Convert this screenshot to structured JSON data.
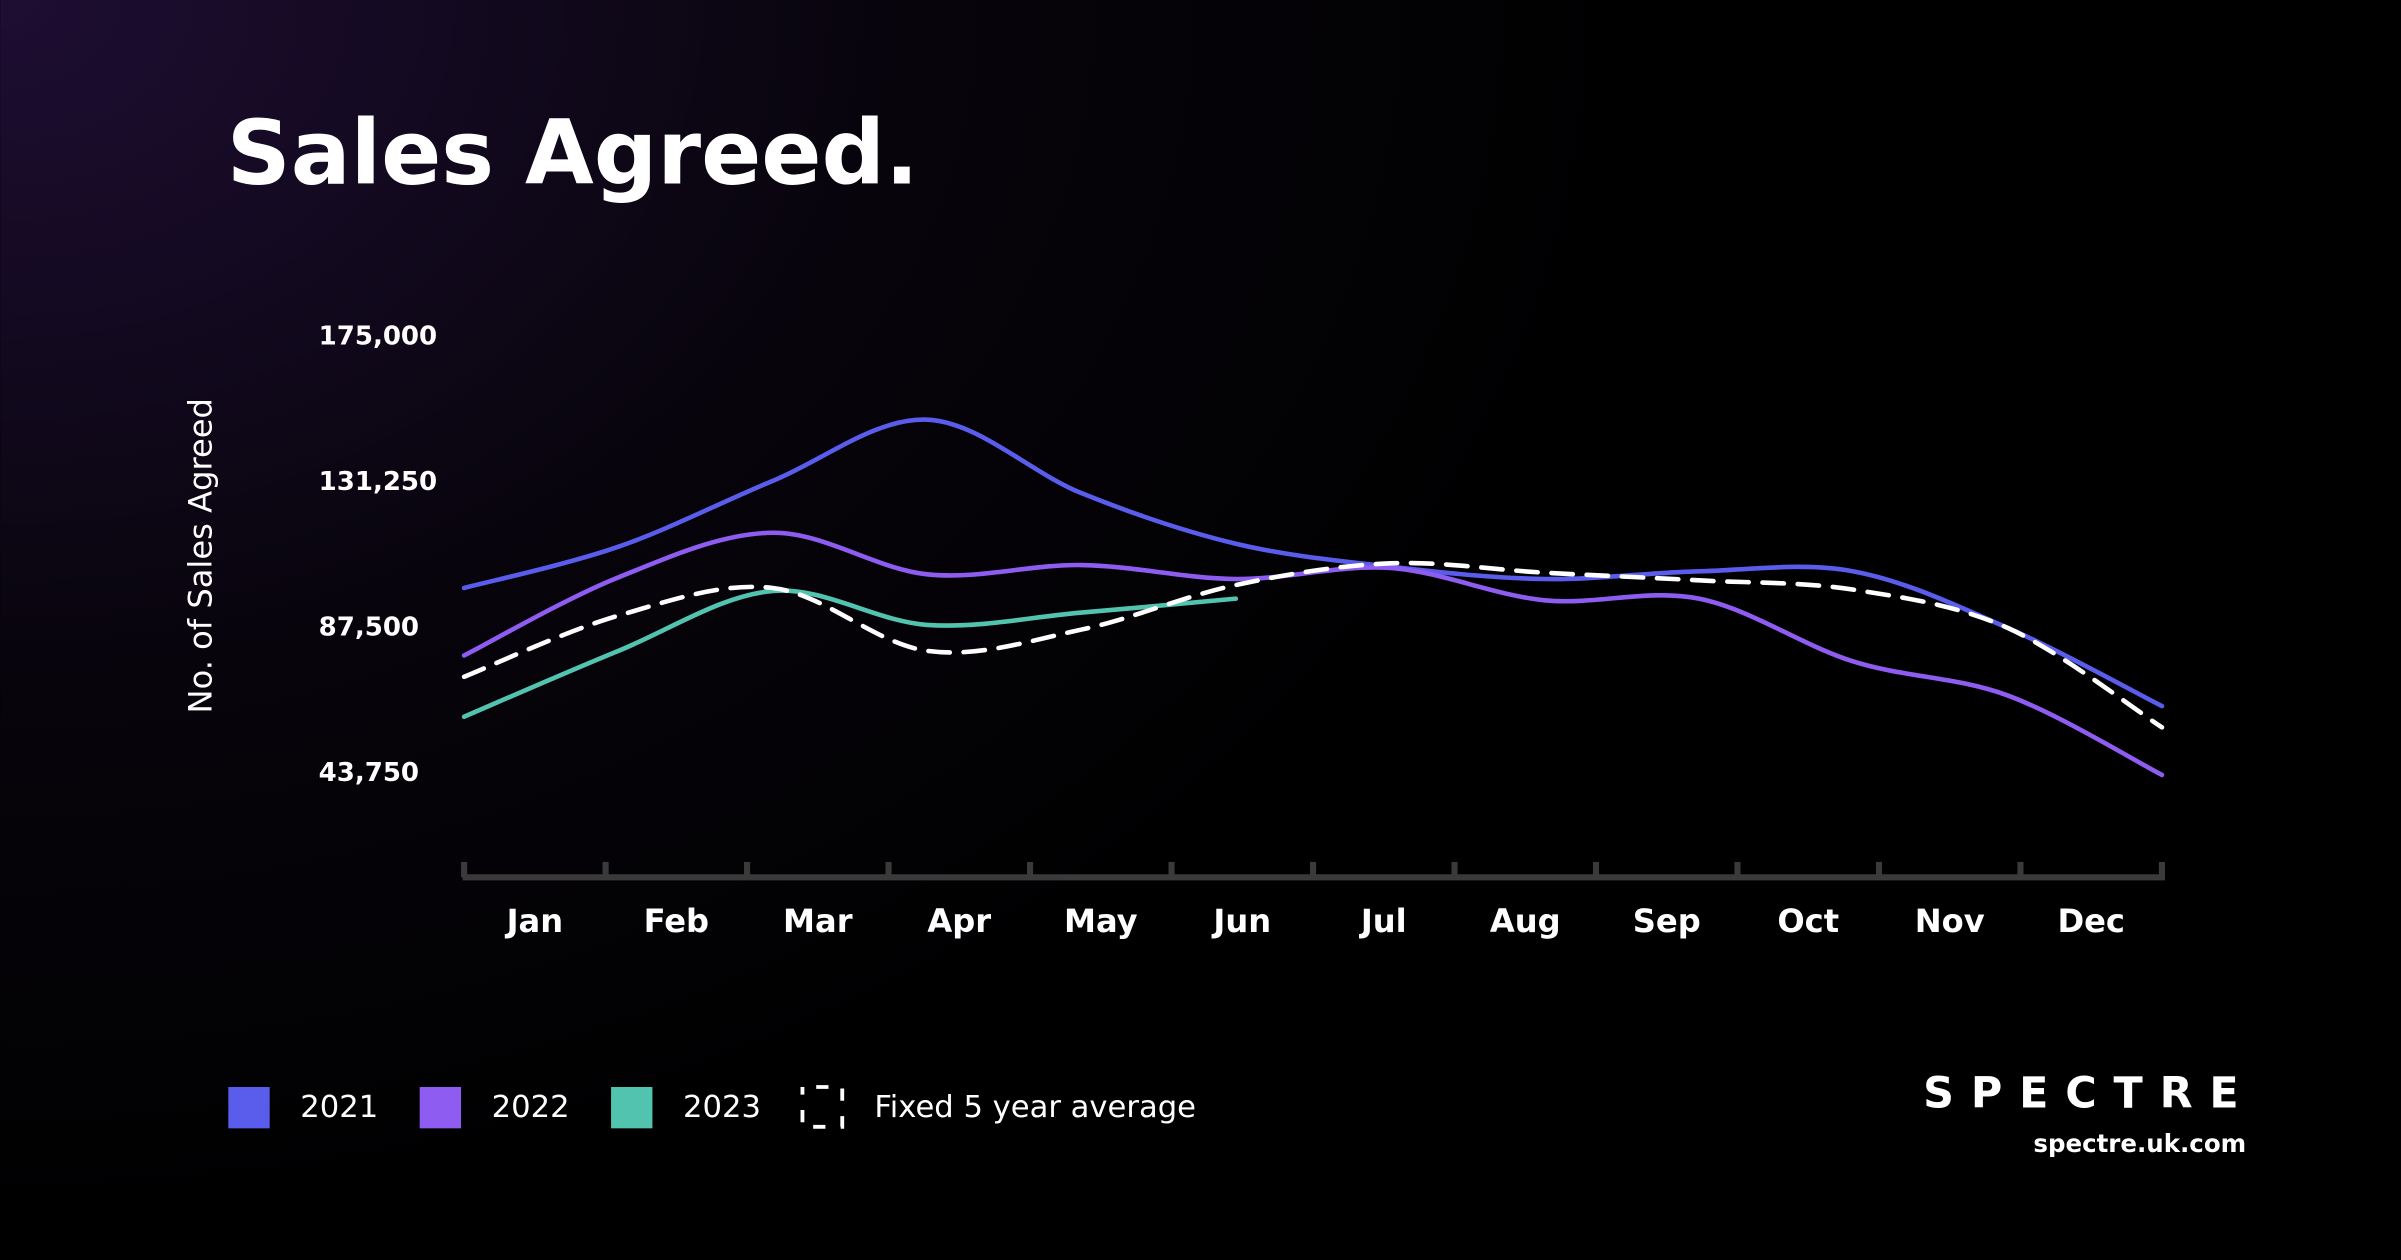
{
  "chart_data": {
    "type": "line",
    "title": "Sales Agreed.",
    "y_label": "No. of Sales Agreed",
    "categories": [
      "Jan",
      "Feb",
      "Mar",
      "Apr",
      "May",
      "Jun",
      "Jul",
      "Aug",
      "Sep",
      "Oct",
      "Nov",
      "Dec"
    ],
    "series": [
      {
        "name": "2021",
        "color": "#5a5cec",
        "values": [
          99500,
          111900,
          131700,
          150100,
          128000,
          112800,
          105900,
          102200,
          104500,
          104500,
          87500,
          64000
        ]
      },
      {
        "name": "2022",
        "color": "#8f5cf2",
        "values": [
          79200,
          102700,
          116100,
          103600,
          106400,
          102200,
          105500,
          95800,
          96300,
          77400,
          67200,
          43300
        ]
      },
      {
        "name": "2023",
        "color": "#52c3ae",
        "values": [
          60800,
          80600,
          98600,
          88400,
          92100,
          96300,
          null,
          null,
          null,
          null,
          null,
          null
        ]
      },
      {
        "name": "Fixed 5 year average",
        "color": "#ffffff",
        "dashed": true,
        "values": [
          72800,
          91200,
          99500,
          80600,
          87000,
          100400,
          106900,
          104100,
          101800,
          99000,
          87500,
          57600
        ]
      }
    ],
    "ylim": [
      13000,
      175000
    ],
    "yticks": [
      {
        "value": 43750,
        "label": "43,750"
      },
      {
        "value": 87500,
        "label": "87,500"
      },
      {
        "value": 131250,
        "label": "131,250"
      },
      {
        "value": 175000,
        "label": "175,000"
      }
    ],
    "grid": false,
    "legend": "bottom-left"
  },
  "brand": {
    "name": "SPECTRE",
    "url": "spectre.uk.com"
  }
}
